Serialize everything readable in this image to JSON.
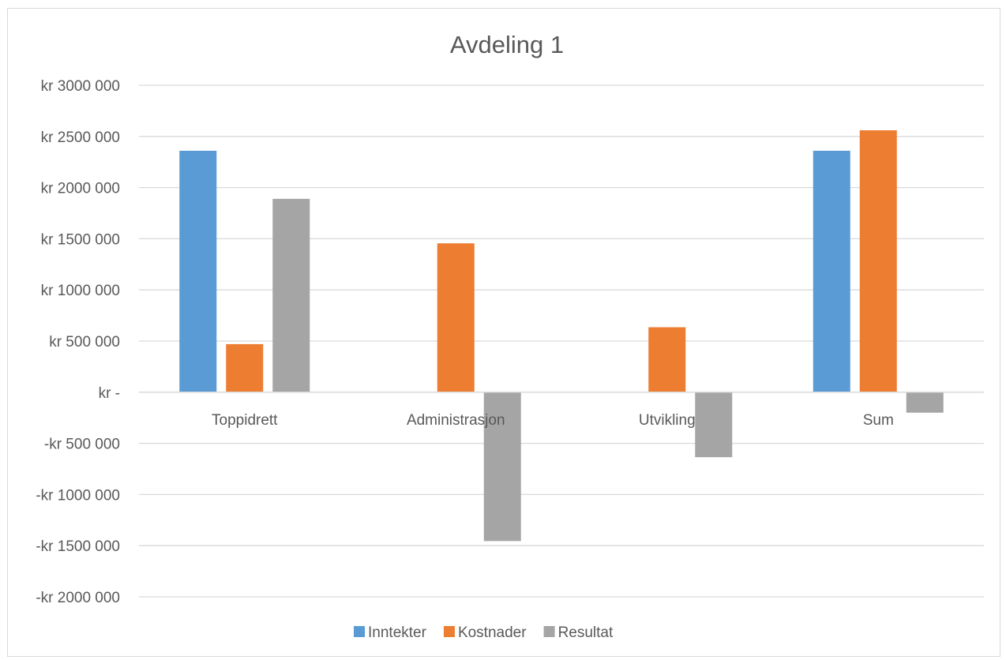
{
  "chart_data": {
    "type": "bar",
    "title": "Avdeling 1",
    "categories": [
      "Toppidrett",
      "Administrasjon",
      "Utvikling",
      "Sum"
    ],
    "series": [
      {
        "name": "Inntekter",
        "color": "#5b9bd5",
        "values": [
          2360000,
          0,
          0,
          2360000
        ]
      },
      {
        "name": "Kostnader",
        "color": "#ed7d31",
        "values": [
          470000,
          1455000,
          635000,
          2560000
        ]
      },
      {
        "name": "Resultat",
        "color": "#a5a5a5",
        "values": [
          1890000,
          -1455000,
          -635000,
          -200000
        ]
      }
    ],
    "ylim": [
      -2000000,
      3000000
    ],
    "ytick_values": [
      3000000,
      2500000,
      2000000,
      1500000,
      1000000,
      500000,
      0,
      -500000,
      -1000000,
      -1500000,
      -2000000
    ],
    "ytick_labels": [
      "kr 3000 000",
      "kr 2500 000",
      "kr 2000 000",
      "kr 1500 000",
      "kr 1000 000",
      "kr 500 000",
      "kr -",
      "-kr 500 000",
      "-kr 1000 000",
      "-kr 1500 000",
      "-kr 2000 000"
    ],
    "grid": true,
    "legend_position": "bottom"
  }
}
